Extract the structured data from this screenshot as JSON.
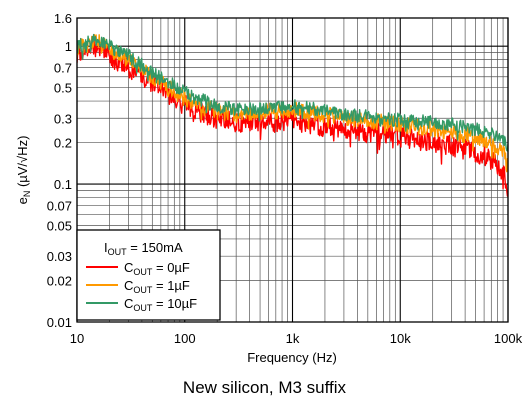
{
  "chart_data": {
    "type": "line",
    "xscale": "log",
    "yscale": "log",
    "xlim": [
      10,
      100000
    ],
    "ylim": [
      0.01,
      1.6
    ],
    "xlabel": "Frequency (Hz)",
    "ylabel_main": "e",
    "ylabel_sub": "N",
    "ylabel_unit": " (µV/√Hz)",
    "x_ticks": [
      {
        "value": 10,
        "label": "10"
      },
      {
        "value": 100,
        "label": "100"
      },
      {
        "value": 1000,
        "label": "1k"
      },
      {
        "value": 10000,
        "label": "10k"
      },
      {
        "value": 100000,
        "label": "100k"
      }
    ],
    "y_ticks": [
      {
        "value": 1.6,
        "label": "1.6"
      },
      {
        "value": 1,
        "label": "1"
      },
      {
        "value": 0.7,
        "label": "0.7"
      },
      {
        "value": 0.5,
        "label": "0.5"
      },
      {
        "value": 0.3,
        "label": "0.3"
      },
      {
        "value": 0.2,
        "label": "0.2"
      },
      {
        "value": 0.1,
        "label": "0.1"
      },
      {
        "value": 0.07,
        "label": "0.07"
      },
      {
        "value": 0.05,
        "label": "0.05"
      },
      {
        "value": 0.03,
        "label": "0.03"
      },
      {
        "value": 0.02,
        "label": "0.02"
      },
      {
        "value": 0.01,
        "label": "0.01"
      }
    ],
    "grid": true,
    "legend": {
      "placement": "bottom-left",
      "header_main": "I",
      "header_sub": "OUT",
      "header_rest": " = 150mA"
    },
    "series": [
      {
        "name_main": "C",
        "name_sub": "OUT",
        "name_rest": " = 0µF",
        "color": "#ff0000",
        "x": [
          10,
          15,
          20,
          30,
          50,
          70,
          100,
          150,
          200,
          300,
          500,
          700,
          1000,
          2000,
          3000,
          5000,
          7000,
          10000,
          20000,
          30000,
          50000,
          70000,
          90000,
          100000
        ],
        "y": [
          0.9,
          1.0,
          0.85,
          0.7,
          0.55,
          0.45,
          0.38,
          0.32,
          0.3,
          0.28,
          0.28,
          0.28,
          0.29,
          0.26,
          0.25,
          0.24,
          0.23,
          0.22,
          0.2,
          0.19,
          0.17,
          0.15,
          0.12,
          0.09
        ]
      },
      {
        "name_main": "C",
        "name_sub": "OUT",
        "name_rest": " = 1µF",
        "color": "#ff9900",
        "x": [
          10,
          15,
          20,
          30,
          50,
          70,
          100,
          150,
          200,
          300,
          500,
          700,
          1000,
          2000,
          3000,
          5000,
          7000,
          10000,
          20000,
          30000,
          50000,
          70000,
          90000,
          100000
        ],
        "y": [
          0.95,
          1.1,
          0.95,
          0.8,
          0.6,
          0.5,
          0.42,
          0.36,
          0.34,
          0.32,
          0.33,
          0.34,
          0.35,
          0.32,
          0.3,
          0.29,
          0.28,
          0.27,
          0.25,
          0.24,
          0.22,
          0.2,
          0.17,
          0.13
        ]
      },
      {
        "name_main": "C",
        "name_sub": "OUT",
        "name_rest": " = 10µF",
        "color": "#339966",
        "x": [
          10,
          15,
          20,
          30,
          50,
          70,
          100,
          150,
          200,
          300,
          500,
          700,
          1000,
          2000,
          3000,
          5000,
          7000,
          10000,
          20000,
          30000,
          50000,
          70000,
          90000,
          100000
        ],
        "y": [
          1.0,
          1.1,
          1.0,
          0.85,
          0.65,
          0.55,
          0.46,
          0.4,
          0.37,
          0.35,
          0.35,
          0.36,
          0.37,
          0.34,
          0.32,
          0.31,
          0.3,
          0.29,
          0.28,
          0.27,
          0.25,
          0.23,
          0.21,
          0.18
        ]
      }
    ]
  },
  "caption": "New silicon, M3 suffix"
}
